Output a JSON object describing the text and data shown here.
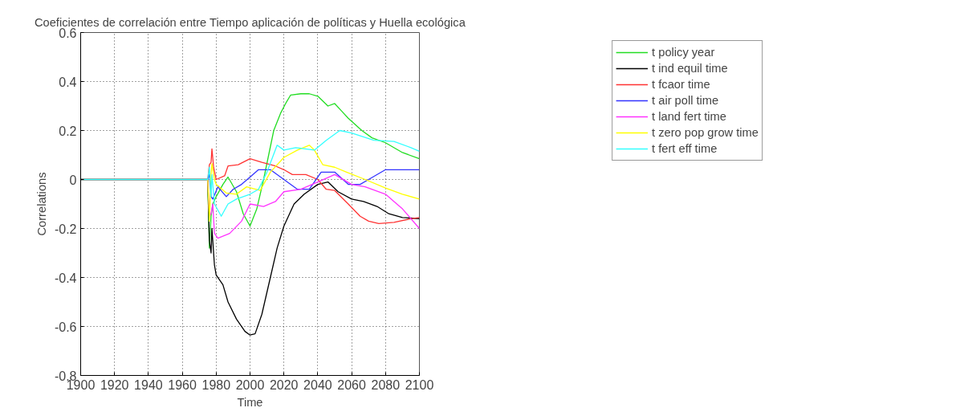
{
  "chart_data": {
    "type": "line",
    "title": "Coeficientes de correlación entre Tiempo aplicación de políticas y Huella ecológica",
    "xlabel": "Time",
    "ylabel": "Correlations",
    "xlim": [
      1900,
      2100
    ],
    "ylim": [
      -0.8,
      0.6
    ],
    "xticks": [
      1900,
      1920,
      1940,
      1960,
      1980,
      2000,
      2020,
      2040,
      2060,
      2080,
      2100
    ],
    "yticks": [
      -0.8,
      -0.6,
      -0.4,
      -0.2,
      0,
      0.2,
      0.4,
      0.6
    ],
    "grid": true,
    "legend": "right",
    "line_style": "solid",
    "series": [
      {
        "name": "t policy year",
        "color": "#22dd22",
        "x": [
          1900,
          1975,
          1976,
          1977,
          1978,
          1980,
          1984,
          1987,
          1992,
          1996,
          2000,
          2004,
          2008,
          2011,
          2014,
          2018,
          2021,
          2024,
          2030,
          2035,
          2040,
          2046,
          2050,
          2054,
          2058,
          2066,
          2072,
          2080,
          2090,
          2100
        ],
        "values": [
          0,
          0,
          -0.28,
          -0.15,
          -0.1,
          -0.07,
          -0.02,
          0.01,
          -0.05,
          -0.14,
          -0.19,
          -0.12,
          0,
          0.1,
          0.2,
          0.27,
          0.31,
          0.345,
          0.35,
          0.35,
          0.34,
          0.3,
          0.31,
          0.28,
          0.25,
          0.2,
          0.17,
          0.15,
          0.11,
          0.085
        ]
      },
      {
        "name": "t ind equil time",
        "color": "#000000",
        "x": [
          1900,
          1975,
          1976,
          1977,
          1977.5,
          1979,
          1980,
          1984,
          1987,
          1992,
          1997,
          2000,
          2003,
          2007,
          2012,
          2016,
          2020,
          2026,
          2032,
          2040,
          2046,
          2052,
          2060,
          2067,
          2075,
          2082,
          2090,
          2100
        ],
        "values": [
          0,
          0,
          -0.25,
          -0.3,
          -0.2,
          -0.35,
          -0.39,
          -0.43,
          -0.5,
          -0.57,
          -0.62,
          -0.635,
          -0.63,
          -0.55,
          -0.4,
          -0.28,
          -0.19,
          -0.1,
          -0.06,
          -0.02,
          -0.01,
          -0.05,
          -0.08,
          -0.09,
          -0.11,
          -0.14,
          -0.155,
          -0.16
        ]
      },
      {
        "name": "t fcaor time",
        "color": "#ff3333",
        "x": [
          1900,
          1975,
          1976,
          1977,
          1977.5,
          1978.5,
          1980,
          1985,
          1987,
          1993,
          2000,
          2007,
          2015,
          2020,
          2025,
          2033,
          2040,
          2045,
          2050,
          2058,
          2065,
          2070,
          2076,
          2085,
          2095,
          2100
        ],
        "values": [
          0,
          0,
          0.06,
          0.07,
          0.125,
          0.05,
          0,
          0.015,
          0.055,
          0.06,
          0.085,
          0.07,
          0.055,
          0.04,
          0.02,
          0.02,
          0,
          -0.04,
          -0.045,
          -0.1,
          -0.15,
          -0.17,
          -0.18,
          -0.175,
          -0.16,
          -0.155
        ]
      },
      {
        "name": "t air poll time",
        "color": "#3333ff",
        "x": [
          1900,
          1975,
          1976,
          1977,
          1978,
          1981,
          1986,
          1990,
          1995,
          2000,
          2005,
          2012,
          2020,
          2028,
          2035,
          2042,
          2050,
          2058,
          2065,
          2070,
          2080,
          2100
        ],
        "values": [
          0,
          0,
          0.02,
          -0.07,
          -0.08,
          -0.03,
          -0.07,
          -0.04,
          -0.02,
          0.01,
          0.04,
          0.04,
          0,
          -0.04,
          -0.04,
          0.03,
          0.03,
          -0.02,
          -0.02,
          0,
          0.04,
          0.04
        ]
      },
      {
        "name": "t land fert time",
        "color": "#ff33ff",
        "x": [
          1900,
          1975,
          1976,
          1977,
          1978,
          1979,
          1981,
          1988,
          1995,
          2000,
          2008,
          2015,
          2020,
          2030,
          2040,
          2050,
          2060,
          2068,
          2080,
          2090,
          2100
        ],
        "values": [
          0,
          0,
          -0.15,
          -0.14,
          -0.1,
          -0.22,
          -0.24,
          -0.22,
          -0.17,
          -0.1,
          -0.11,
          -0.09,
          -0.05,
          -0.04,
          -0.01,
          0.02,
          -0.02,
          -0.03,
          -0.06,
          -0.12,
          -0.2
        ]
      },
      {
        "name": "t zero pop grow time",
        "color": "#ffff00",
        "x": [
          1900,
          1975,
          1976,
          1977,
          1977.5,
          1979,
          1980,
          1986,
          1992,
          1998,
          2006,
          2012,
          2020,
          2028,
          2035,
          2038,
          2043,
          2050,
          2057,
          2068,
          2080,
          2090,
          2100
        ],
        "values": [
          0,
          0,
          -0.17,
          0.02,
          0.065,
          0,
          -0.02,
          -0.055,
          -0.06,
          -0.03,
          -0.045,
          0.03,
          0.09,
          0.12,
          0.14,
          0.12,
          0.06,
          0.05,
          0.03,
          0,
          -0.035,
          -0.06,
          -0.08
        ]
      },
      {
        "name": "t fert eff time",
        "color": "#33ffff",
        "x": [
          1900,
          1975,
          1976,
          1977,
          1977.5,
          1979,
          1983,
          1987,
          1992,
          2000,
          2005,
          2010,
          2016,
          2020,
          2027,
          2038,
          2045,
          2053,
          2060,
          2073,
          2085,
          2095,
          2100
        ],
        "values": [
          0,
          0,
          0.05,
          -0.07,
          0.02,
          -0.1,
          -0.15,
          -0.1,
          -0.08,
          -0.06,
          -0.04,
          0.03,
          0.14,
          0.12,
          0.13,
          0.12,
          0.16,
          0.2,
          0.19,
          0.16,
          0.155,
          0.13,
          0.115
        ]
      }
    ]
  }
}
